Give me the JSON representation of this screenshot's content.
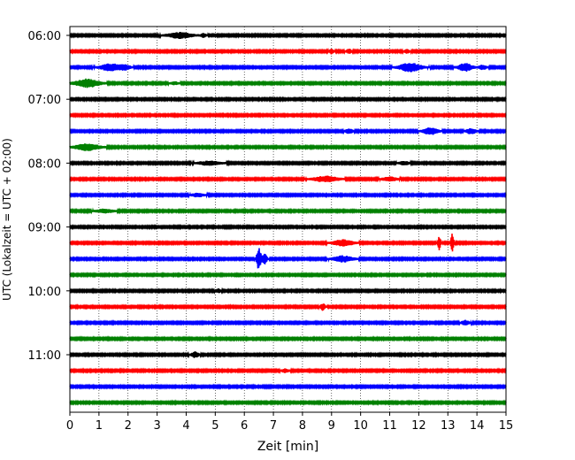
{
  "chart_data": {
    "type": "line",
    "title": "",
    "xlabel": "Zeit  [min]",
    "ylabel": "UTC (Lokalzeit = UTC + 02:00)",
    "xlim": [
      0,
      15
    ],
    "x_ticks": [
      0,
      1,
      2,
      3,
      4,
      5,
      6,
      7,
      8,
      9,
      10,
      11,
      12,
      13,
      14,
      15
    ],
    "grid": "vertical dotted at every minute",
    "y_tick_labels": [
      "06:00",
      "07:00",
      "08:00",
      "09:00",
      "10:00",
      "11:00"
    ],
    "y_tick_rows": [
      0,
      4,
      8,
      12,
      16,
      20
    ],
    "trace_minutes": 15,
    "row_start_times": [
      "06:00",
      "06:15",
      "06:30",
      "06:45",
      "07:00",
      "07:15",
      "07:30",
      "07:45",
      "08:00",
      "08:15",
      "08:30",
      "08:45",
      "09:00",
      "09:15",
      "09:30",
      "09:45",
      "10:00",
      "10:15",
      "10:30",
      "10:45",
      "11:00",
      "11:15",
      "11:30",
      "11:45"
    ],
    "color_cycle": [
      "#000000",
      "#ff0000",
      "#0000ff",
      "#008000"
    ],
    "noise_level": 0.35,
    "events": [
      {
        "row": 0,
        "minute": 3.8,
        "amplitude": 1.6,
        "duration": 1.0
      },
      {
        "row": 0,
        "minute": 4.6,
        "amplitude": 1.0,
        "duration": 0.2
      },
      {
        "row": 1,
        "minute": 9.0,
        "amplitude": 1.3,
        "duration": 0.2
      },
      {
        "row": 1,
        "minute": 9.6,
        "amplitude": 1.2,
        "duration": 0.2
      },
      {
        "row": 1,
        "minute": 11.6,
        "amplitude": 1.2,
        "duration": 0.2
      },
      {
        "row": 2,
        "minute": 1.4,
        "amplitude": 2.0,
        "duration": 0.8
      },
      {
        "row": 2,
        "minute": 1.9,
        "amplitude": 1.4,
        "duration": 0.4
      },
      {
        "row": 2,
        "minute": 11.7,
        "amplitude": 2.3,
        "duration": 0.9
      },
      {
        "row": 2,
        "minute": 13.6,
        "amplitude": 2.0,
        "duration": 0.6
      },
      {
        "row": 2,
        "minute": 14.2,
        "amplitude": 1.2,
        "duration": 0.3
      },
      {
        "row": 3,
        "minute": 0.6,
        "amplitude": 2.2,
        "duration": 1.0
      },
      {
        "row": 3,
        "minute": 3.6,
        "amplitude": 0.8,
        "duration": 0.3
      },
      {
        "row": 6,
        "minute": 9.6,
        "amplitude": 1.2,
        "duration": 0.3
      },
      {
        "row": 6,
        "minute": 12.4,
        "amplitude": 1.8,
        "duration": 0.6
      },
      {
        "row": 6,
        "minute": 13.8,
        "amplitude": 1.5,
        "duration": 0.4
      },
      {
        "row": 7,
        "minute": 0.6,
        "amplitude": 1.8,
        "duration": 1.0
      },
      {
        "row": 8,
        "minute": 4.8,
        "amplitude": 1.1,
        "duration": 0.9
      },
      {
        "row": 8,
        "minute": 11.5,
        "amplitude": 1.0,
        "duration": 0.4
      },
      {
        "row": 9,
        "minute": 8.8,
        "amplitude": 1.5,
        "duration": 1.0
      },
      {
        "row": 9,
        "minute": 11.0,
        "amplitude": 1.1,
        "duration": 0.6
      },
      {
        "row": 10,
        "minute": 4.4,
        "amplitude": 0.9,
        "duration": 0.5
      },
      {
        "row": 11,
        "minute": 1.2,
        "amplitude": 1.0,
        "duration": 0.7
      },
      {
        "row": 13,
        "minute": 9.4,
        "amplitude": 1.7,
        "duration": 0.8
      },
      {
        "row": 13,
        "minute": 12.7,
        "amplitude": 4.0,
        "duration": 0.12
      },
      {
        "row": 13,
        "minute": 13.15,
        "amplitude": 5.0,
        "duration": 0.12
      },
      {
        "row": 14,
        "minute": 6.5,
        "amplitude": 6.0,
        "duration": 0.18
      },
      {
        "row": 14,
        "minute": 6.7,
        "amplitude": 3.0,
        "duration": 0.18
      },
      {
        "row": 14,
        "minute": 9.4,
        "amplitude": 1.6,
        "duration": 0.8
      },
      {
        "row": 16,
        "minute": 5.1,
        "amplitude": 1.0,
        "duration": 0.2
      },
      {
        "row": 17,
        "minute": 8.7,
        "amplitude": 1.8,
        "duration": 0.2
      },
      {
        "row": 18,
        "minute": 13.6,
        "amplitude": 1.3,
        "duration": 0.3
      },
      {
        "row": 20,
        "minute": 4.3,
        "amplitude": 1.5,
        "duration": 0.3
      },
      {
        "row": 21,
        "minute": 7.4,
        "amplitude": 0.9,
        "duration": 0.3
      }
    ]
  }
}
